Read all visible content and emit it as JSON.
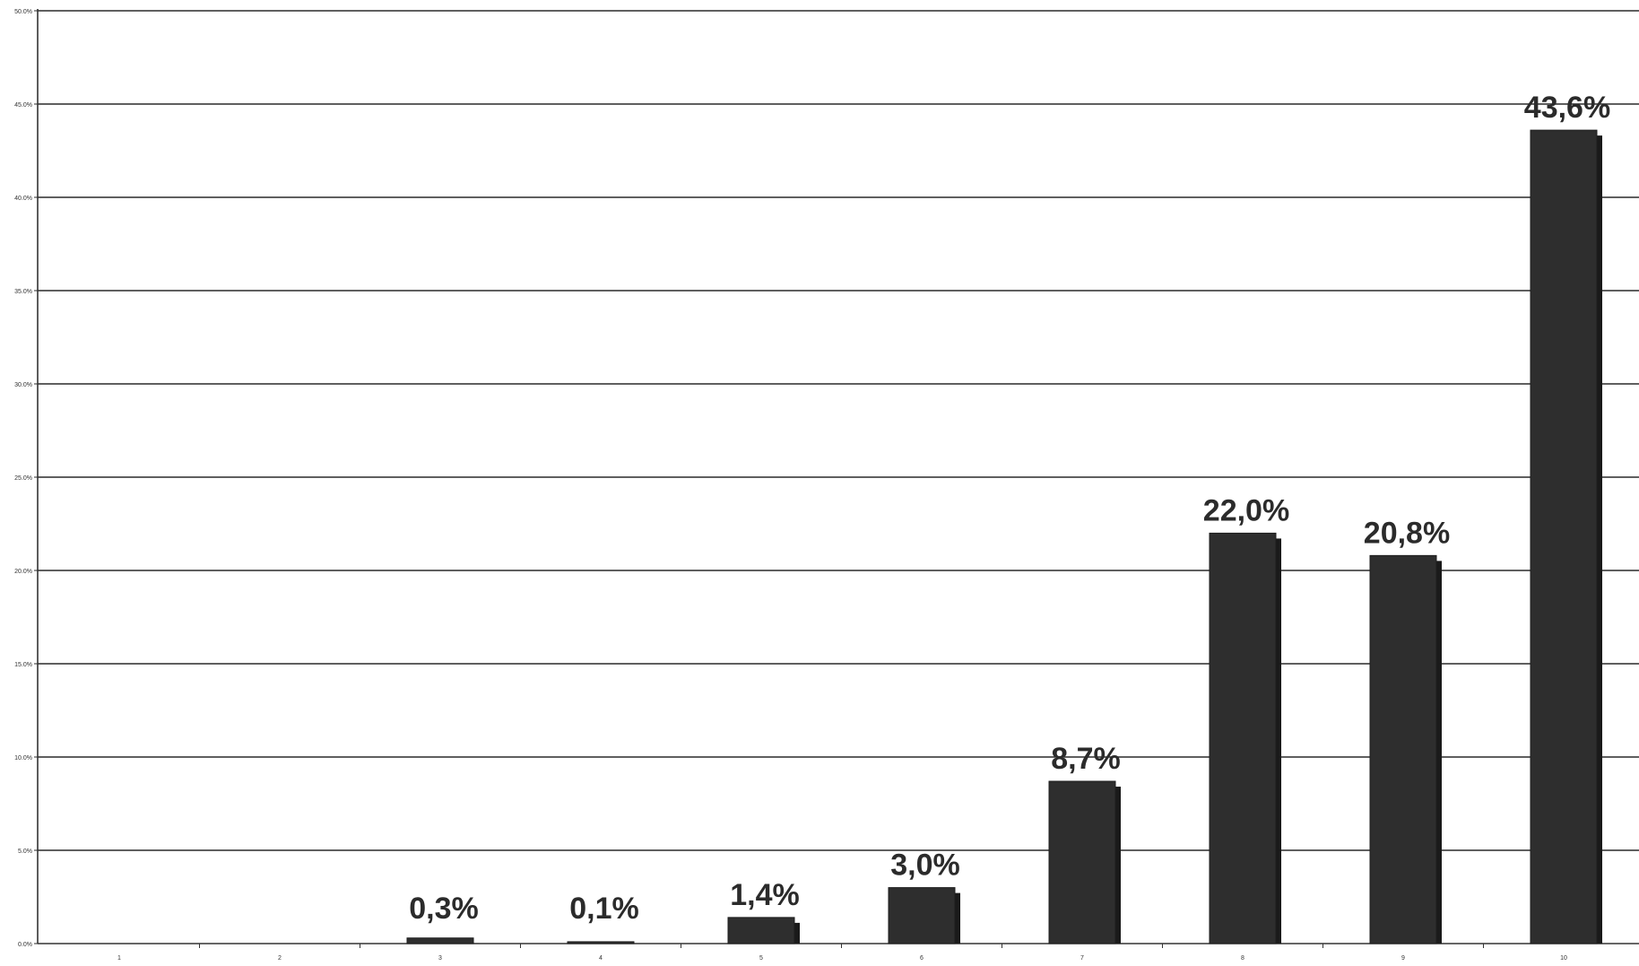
{
  "chart_data": {
    "type": "bar",
    "title": "",
    "xlabel": "",
    "ylabel": "",
    "categories": [
      "1",
      "2",
      "3",
      "4",
      "5",
      "6",
      "7",
      "8",
      "9",
      "10"
    ],
    "values": [
      0,
      0,
      0.3,
      0.1,
      1.4,
      3.0,
      8.7,
      22.0,
      20.8,
      43.6
    ],
    "data_labels": [
      "",
      "",
      "0,3%",
      "0,1%",
      "1,4%",
      "3,0%",
      "8,7%",
      "22,0%",
      "20,8%",
      "43,6%"
    ],
    "y_ticks": [
      "0.0%",
      "5.0%",
      "10.0%",
      "15.0%",
      "20.0%",
      "25.0%",
      "30.0%",
      "35.0%",
      "40.0%",
      "45.0%",
      "50.0%"
    ],
    "ylim": [
      0,
      50
    ],
    "grid": true,
    "legend": "none",
    "colors": {
      "bar": "#2e2e2e",
      "bar_shadow": "#1a1a1a",
      "grid": "#2a2a2a"
    }
  }
}
